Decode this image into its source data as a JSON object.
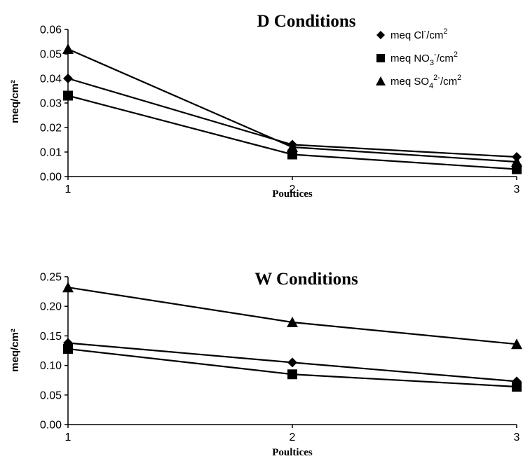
{
  "chart_data": [
    {
      "type": "line",
      "title": "D Conditions",
      "xlabel": "Poultices",
      "ylabel": "meq/cm²",
      "x": [
        1,
        2,
        3
      ],
      "ylim": [
        0,
        0.06
      ],
      "yticks": [
        "0.00",
        "0.01",
        "0.02",
        "0.03",
        "0.04",
        "0.05",
        "0.06"
      ],
      "xticks": [
        "1",
        "2",
        "3"
      ],
      "legend_position": "top-right",
      "grid": false,
      "series": [
        {
          "name": "meq Cl⁻/cm²",
          "legend_parts": [
            "meq Cl",
            "-",
            "/cm",
            "2"
          ],
          "marker": "diamond",
          "values": [
            0.04,
            0.013,
            0.008
          ]
        },
        {
          "name": "meq NO₃⁻/cm²",
          "legend_parts": [
            "meq NO",
            "3",
            "-",
            "/cm",
            "2"
          ],
          "marker": "square",
          "values": [
            0.033,
            0.009,
            0.003
          ]
        },
        {
          "name": "meq SO₄²⁻/cm²",
          "legend_parts": [
            "meq SO",
            "4",
            "2-",
            "/cm",
            "2"
          ],
          "marker": "triangle",
          "values": [
            0.052,
            0.012,
            0.006
          ]
        }
      ]
    },
    {
      "type": "line",
      "title": "W Conditions",
      "xlabel": "Poultices",
      "ylabel": "meq/cm²",
      "x": [
        1,
        2,
        3
      ],
      "ylim": [
        0,
        0.25
      ],
      "yticks": [
        "0.00",
        "0.05",
        "0.10",
        "0.15",
        "0.20",
        "0.25"
      ],
      "xticks": [
        "1",
        "2",
        "3"
      ],
      "grid": false,
      "series": [
        {
          "name": "meq Cl⁻/cm²",
          "marker": "diamond",
          "values": [
            0.138,
            0.105,
            0.073
          ]
        },
        {
          "name": "meq NO₃⁻/cm²",
          "marker": "square",
          "values": [
            0.128,
            0.085,
            0.064
          ]
        },
        {
          "name": "meq SO₄²⁻/cm²",
          "marker": "triangle",
          "values": [
            0.232,
            0.173,
            0.136
          ]
        }
      ]
    }
  ]
}
